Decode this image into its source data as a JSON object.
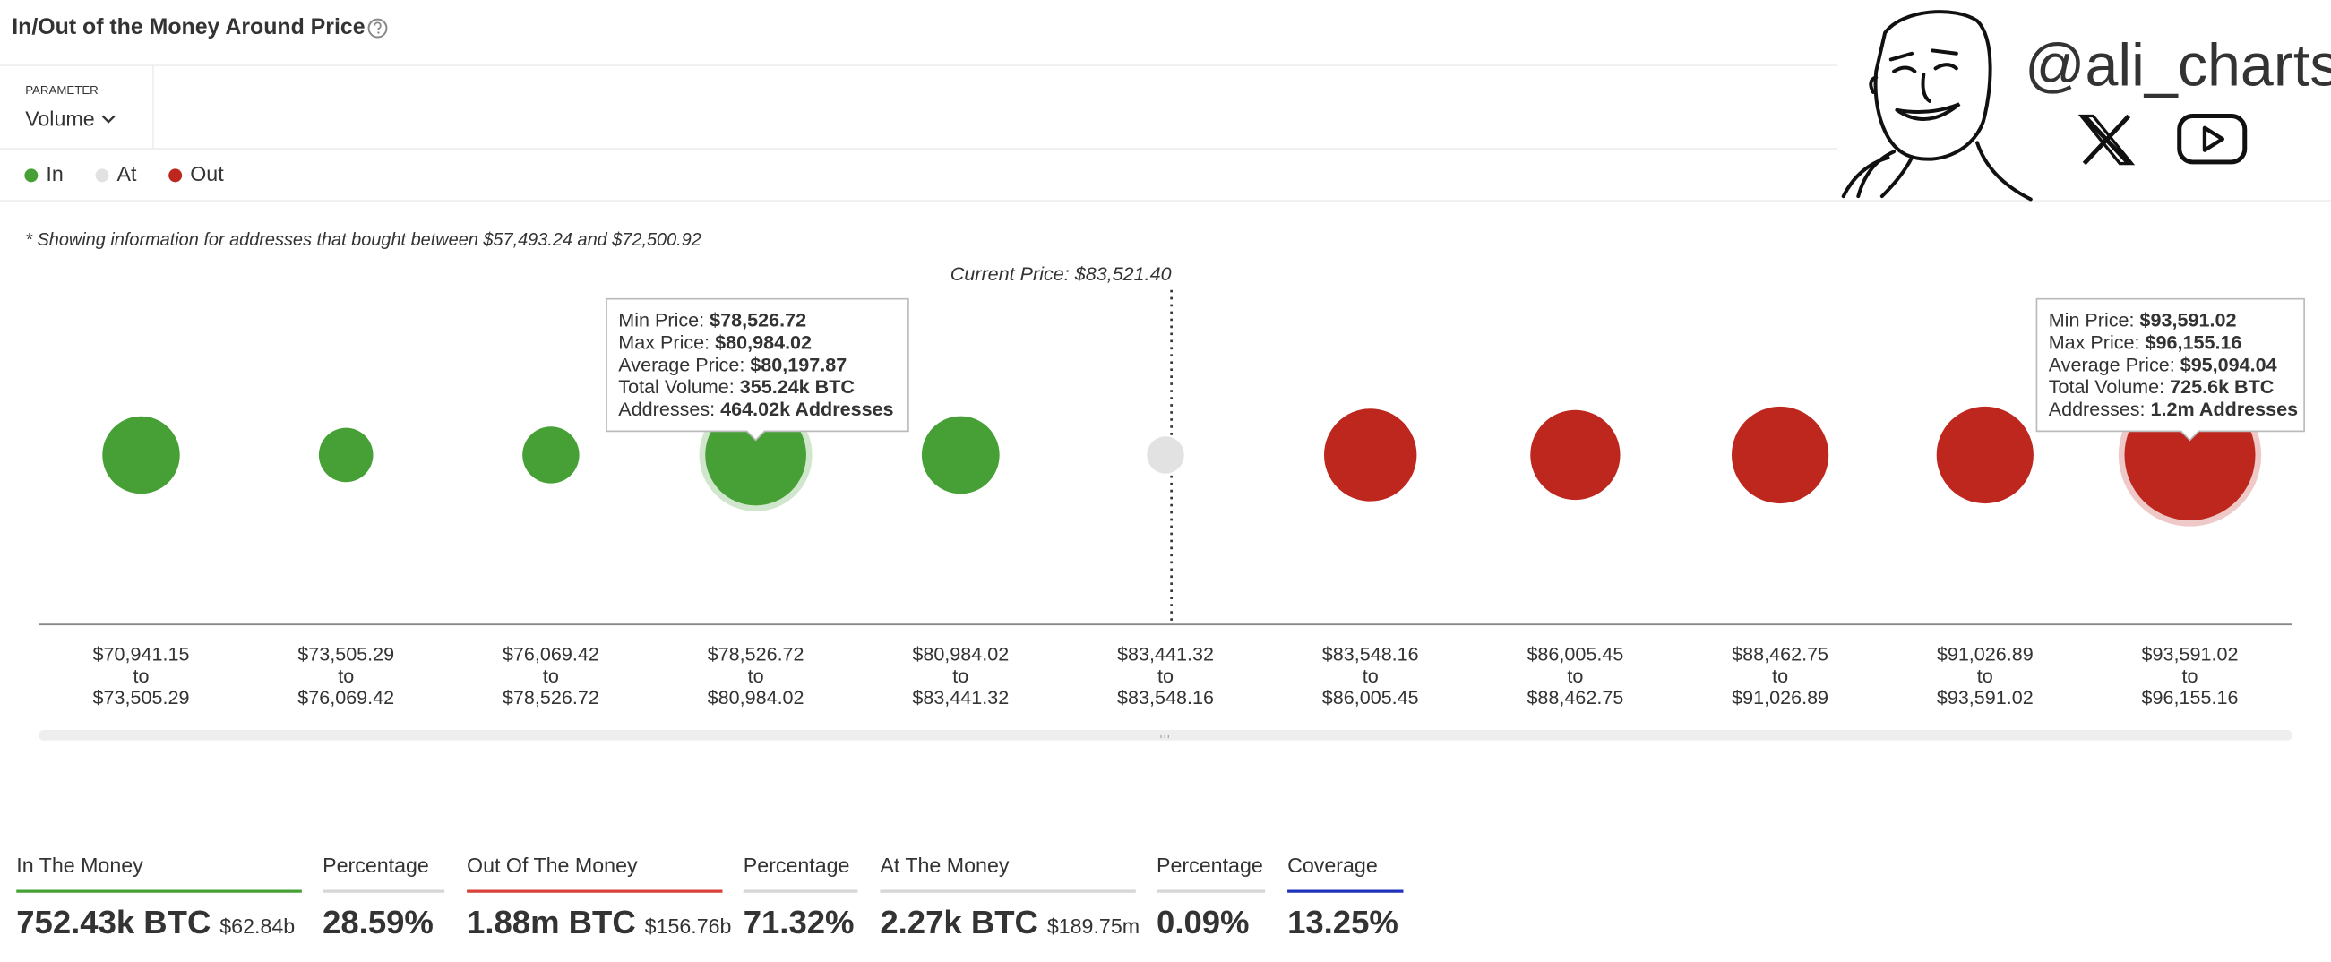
{
  "header": {
    "title": "In/Out of the Money Around Price"
  },
  "parameter": {
    "label": "PARAMETER",
    "value": "Volume"
  },
  "note": "* Showing information for addresses that bought between $57,493.24 and $72,500.92",
  "chart_data": {
    "type": "bubble",
    "current_price": "Current Price: $83,521.40",
    "categories": [
      [
        "$70,941.15",
        "to",
        "$73,505.29"
      ],
      [
        "$73,505.29",
        "to",
        "$76,069.42"
      ],
      [
        "$76,069.42",
        "to",
        "$78,526.72"
      ],
      [
        "$78,526.72",
        "to",
        "$80,984.02"
      ],
      [
        "$80,984.02",
        "to",
        "$83,441.32"
      ],
      [
        "$83,441.32",
        "to",
        "$83,548.16"
      ],
      [
        "$83,548.16",
        "to",
        "$86,005.45"
      ],
      [
        "$86,005.45",
        "to",
        "$88,462.75"
      ],
      [
        "$88,462.75",
        "to",
        "$91,026.89"
      ],
      [
        "$91,026.89",
        "to",
        "$93,591.02"
      ],
      [
        "$93,591.02",
        "to",
        "$96,155.16"
      ]
    ],
    "series": [
      {
        "name": "In",
        "color": "#46a036",
        "values": [
          155,
          38,
          47,
          355.24,
          157,
          null,
          null,
          null,
          null,
          null,
          null
        ]
      },
      {
        "name": "At",
        "color": "#e2e2e2",
        "values": [
          null,
          null,
          null,
          null,
          null,
          2.27,
          null,
          null,
          null,
          null,
          null
        ]
      },
      {
        "name": "Out",
        "color": "#bd271e",
        "values": [
          null,
          null,
          null,
          null,
          null,
          null,
          275,
          250,
          315,
          315,
          725.6
        ]
      }
    ]
  },
  "tooltips": [
    {
      "rows": [
        {
          "label": "Min Price:",
          "value": "$78,526.72"
        },
        {
          "label": "Max Price:",
          "value": "$80,984.02"
        },
        {
          "label": "Average Price:",
          "value": "$80,197.87"
        },
        {
          "label": "Total Volume:",
          "value": "355.24k BTC"
        },
        {
          "label": "Addresses:",
          "value": "464.02k Addresses"
        }
      ]
    },
    {
      "rows": [
        {
          "label": "Min Price:",
          "value": "$93,591.02"
        },
        {
          "label": "Max Price:",
          "value": "$96,155.16"
        },
        {
          "label": "Average Price:",
          "value": "$95,094.04"
        },
        {
          "label": "Total Volume:",
          "value": "725.6k BTC"
        },
        {
          "label": "Addresses:",
          "value": "1.2m Addresses"
        }
      ]
    }
  ],
  "stats": [
    {
      "label": "In The Money",
      "value": "752.43k BTC",
      "sub": "$62.84b",
      "color": "#46a036"
    },
    {
      "label": "Percentage",
      "value": "28.59%",
      "color": "#d6d6d6"
    },
    {
      "label": "Out Of The Money",
      "value": "1.88m BTC",
      "sub": "$156.76b",
      "color": "#d9423a"
    },
    {
      "label": "Percentage",
      "value": "71.32%",
      "color": "#d6d6d6"
    },
    {
      "label": "At The Money",
      "value": "2.27k BTC",
      "sub": "$189.75m",
      "color": "#d6d6d6"
    },
    {
      "label": "Percentage",
      "value": "0.09%",
      "color": "#d6d6d6"
    },
    {
      "label": "Coverage",
      "value": "13.25%",
      "color": "#2233bb"
    }
  ],
  "watermark": {
    "handle": "@ali_charts"
  }
}
